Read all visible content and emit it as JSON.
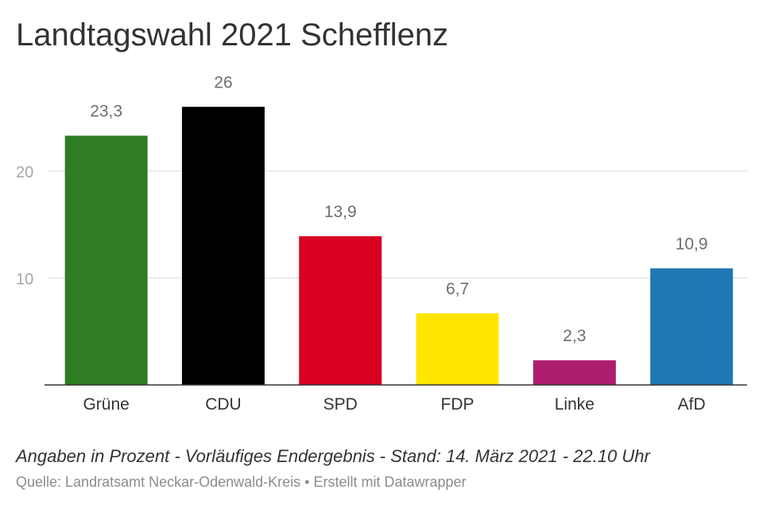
{
  "chart_data": {
    "type": "bar",
    "title": "Landtagswahl 2021 Schefflenz",
    "categories": [
      "Grüne",
      "CDU",
      "SPD",
      "FDP",
      "Linke",
      "AfD"
    ],
    "values": [
      23.3,
      26,
      13.9,
      6.7,
      2.3,
      10.9
    ],
    "value_labels": [
      "23,3",
      "26",
      "13,9",
      "6,7",
      "2,3",
      "10,9"
    ],
    "colors": [
      "#2e7d23",
      "#000000",
      "#d90022",
      "#ffe600",
      "#ae1d6e",
      "#1f77b4"
    ],
    "ylim": [
      0,
      28
    ],
    "yticks": [
      10,
      20
    ],
    "ytick_labels": [
      "10",
      "20"
    ],
    "grid": true,
    "xlabel": "",
    "ylabel": ""
  },
  "footer": {
    "note": "Angaben in Prozent - Vorläufiges Endergebnis - Stand: 14. März 2021 - 22.10 Uhr",
    "source_prefix": "Quelle: Landratsamt Neckar-Odenwald-Kreis",
    "separator": " • ",
    "credit": "Erstellt mit Datawrapper"
  }
}
